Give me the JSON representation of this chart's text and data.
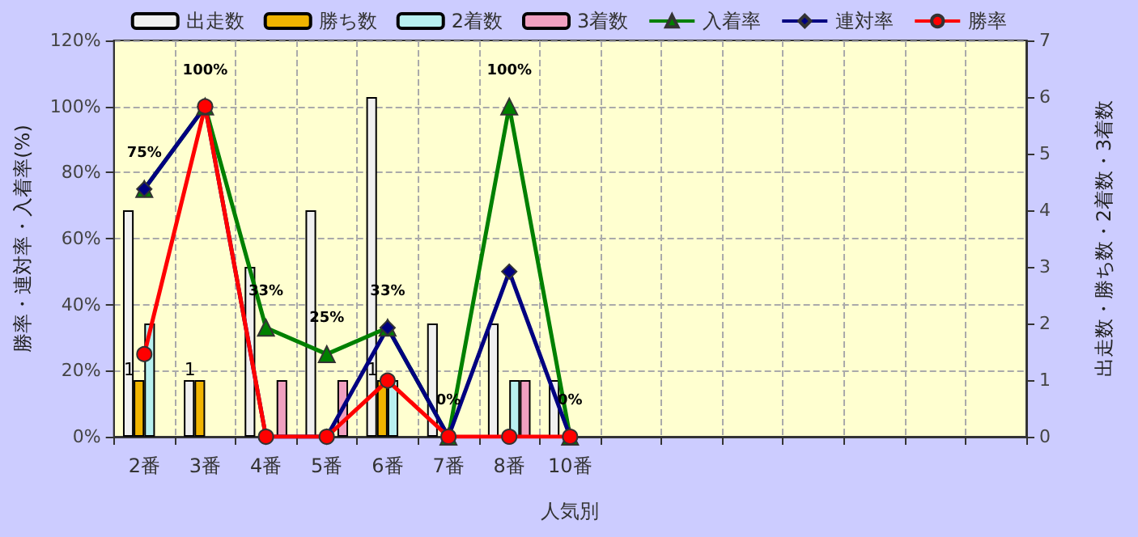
{
  "chart_data": {
    "type": "bar",
    "xlabel": "人気別",
    "ylabel": "勝率・連対率・入着率(%)",
    "y2label": "出走数・勝ち数・2着数・3着数",
    "categories": [
      "2番",
      "3番",
      "4番",
      "5番",
      "6番",
      "7番",
      "8番",
      "10番",
      null,
      null,
      null,
      null,
      null,
      null,
      null
    ],
    "ylim": [
      0,
      120
    ],
    "yticks": [
      {
        "value": 0,
        "label": "0%"
      },
      {
        "value": 20,
        "label": "20%"
      },
      {
        "value": 40,
        "label": "40%"
      },
      {
        "value": 60,
        "label": "60%"
      },
      {
        "value": 80,
        "label": "80%"
      },
      {
        "value": 100,
        "label": "100%"
      },
      {
        "value": 120,
        "label": "120%"
      }
    ],
    "y2lim": [
      0,
      7
    ],
    "y2ticks": [
      0,
      1,
      2,
      3,
      4,
      5,
      6,
      7
    ],
    "grid": true,
    "legend": "top",
    "series": [
      {
        "name": "出走数",
        "axis": "y2",
        "color": "#f0f0f0",
        "values": [
          4,
          1,
          3,
          4,
          6,
          2,
          2,
          1,
          null,
          null,
          null,
          null,
          null,
          null,
          null
        ]
      },
      {
        "name": "勝ち数",
        "axis": "y2",
        "color": "#f0b400",
        "values": [
          1,
          1,
          0,
          0,
          1,
          0,
          0,
          0,
          null,
          null,
          null,
          null,
          null,
          null,
          null
        ],
        "value_labels": [
          "1",
          "1",
          null,
          null,
          "1",
          null,
          null,
          null,
          null,
          null,
          null,
          null,
          null,
          null,
          null
        ]
      },
      {
        "name": "2着数",
        "axis": "y2",
        "color": "#b8f0f0",
        "values": [
          2,
          0,
          0,
          0,
          1,
          0,
          1,
          0,
          null,
          null,
          null,
          null,
          null,
          null,
          null
        ]
      },
      {
        "name": "3着数",
        "axis": "y2",
        "color": "#f0a0c0",
        "values": [
          0,
          0,
          1,
          1,
          0,
          0,
          1,
          0,
          null,
          null,
          null,
          null,
          null,
          null,
          null
        ]
      },
      {
        "name": "入着率",
        "type": "line",
        "color": "#008000",
        "marker": "triangle",
        "values": [
          75,
          100,
          33,
          25,
          33,
          0,
          100,
          0,
          null,
          null,
          null,
          null,
          null,
          null,
          null
        ],
        "value_labels": [
          "75%",
          "100%",
          "33%",
          "25%",
          "33%",
          "0%",
          "100%",
          "0%",
          null,
          null,
          null,
          null,
          null,
          null,
          null
        ]
      },
      {
        "name": "連対率",
        "type": "line",
        "color": "#000080",
        "marker": "diamond",
        "values": [
          75,
          100,
          0,
          0,
          33,
          0,
          50,
          0,
          null,
          null,
          null,
          null,
          null,
          null,
          null
        ]
      },
      {
        "name": "勝率",
        "type": "line",
        "color": "#ff0000",
        "marker": "circle",
        "values": [
          25,
          100,
          0,
          0,
          17,
          0,
          0,
          0,
          null,
          null,
          null,
          null,
          null,
          null,
          null
        ]
      }
    ]
  }
}
